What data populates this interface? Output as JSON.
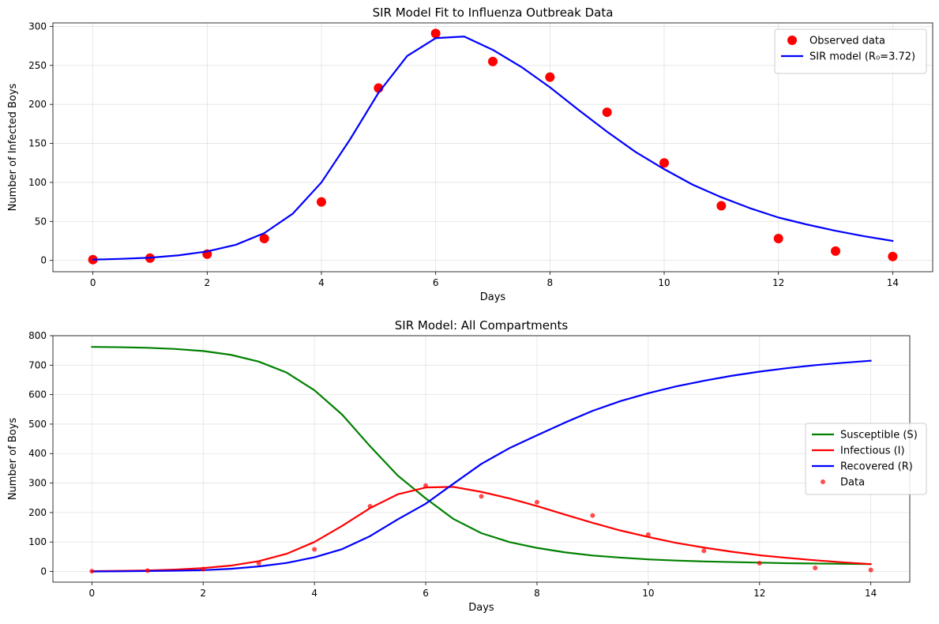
{
  "chart_data": [
    {
      "type": "line",
      "title": "SIR Model Fit to Influenza Outbreak Data",
      "xlabel": "Days",
      "ylabel": "Number of Infected Boys",
      "xlim": [
        -0.7,
        14.7
      ],
      "ylim": [
        -14.5,
        304.5
      ],
      "xticks": [
        0,
        2,
        4,
        6,
        8,
        10,
        12,
        14
      ],
      "yticks": [
        0,
        50,
        100,
        150,
        200,
        250,
        300
      ],
      "grid": true,
      "legend_position": "upper right",
      "series": [
        {
          "name": "Observed data",
          "kind": "scatter",
          "color": "#ff0000",
          "x": [
            0,
            1,
            2,
            3,
            4,
            5,
            6,
            7,
            8,
            9,
            10,
            11,
            12,
            13,
            14
          ],
          "y": [
            1,
            3,
            8,
            28,
            75,
            221,
            291,
            255,
            235,
            190,
            125,
            70,
            28,
            12,
            5
          ]
        },
        {
          "name": "SIR model (R₀=3.72)",
          "kind": "line",
          "color": "#0000ff",
          "x": [
            0,
            0.5,
            1,
            1.5,
            2,
            2.5,
            3,
            3.5,
            4,
            4.5,
            5,
            5.5,
            6,
            6.5,
            7,
            7.5,
            8,
            8.5,
            9,
            9.5,
            10,
            10.5,
            11,
            11.5,
            12,
            12.5,
            13,
            13.5,
            14
          ],
          "y": [
            1,
            2,
            3.5,
            6.5,
            11.5,
            20,
            35,
            60,
            100,
            155,
            215,
            262,
            285,
            287,
            270,
            248,
            222,
            193,
            165,
            139,
            117,
            97,
            81,
            67,
            55,
            46,
            38,
            31,
            25
          ]
        }
      ]
    },
    {
      "type": "line",
      "title": "SIR Model: All Compartments",
      "xlabel": "Days",
      "ylabel": "Number of Boys",
      "xlim": [
        -0.7,
        14.7
      ],
      "ylim": [
        -36.2,
        800
      ],
      "xticks": [
        0,
        2,
        4,
        6,
        8,
        10,
        12,
        14
      ],
      "yticks": [
        0,
        100,
        200,
        300,
        400,
        500,
        600,
        700,
        800
      ],
      "grid": true,
      "legend_position": "center right",
      "series": [
        {
          "name": "Susceptible (S)",
          "kind": "line",
          "color": "#008000",
          "x": [
            0,
            0.5,
            1,
            1.5,
            2,
            2.5,
            3,
            3.5,
            4,
            4.5,
            5,
            5.5,
            6,
            6.5,
            7,
            7.5,
            8,
            8.5,
            9,
            9.5,
            10,
            10.5,
            11,
            11.5,
            12,
            12.5,
            13,
            13.5,
            14
          ],
          "y": [
            762,
            761,
            759,
            755,
            748,
            735,
            712,
            675,
            615,
            532,
            425,
            325,
            248,
            178,
            130,
            100,
            80,
            65,
            54,
            47,
            41,
            37,
            34,
            32,
            30,
            28,
            27,
            26,
            25
          ]
        },
        {
          "name": "Infectious (I)",
          "kind": "line",
          "color": "#ff0000",
          "x": [
            0,
            0.5,
            1,
            1.5,
            2,
            2.5,
            3,
            3.5,
            4,
            4.5,
            5,
            5.5,
            6,
            6.5,
            7,
            7.5,
            8,
            8.5,
            9,
            9.5,
            10,
            10.5,
            11,
            11.5,
            12,
            12.5,
            13,
            13.5,
            14
          ],
          "y": [
            1,
            2,
            3.5,
            6.5,
            11.5,
            20,
            35,
            60,
            100,
            155,
            215,
            262,
            285,
            287,
            270,
            248,
            222,
            193,
            165,
            139,
            117,
            97,
            81,
            67,
            55,
            46,
            38,
            31,
            25
          ]
        },
        {
          "name": "Recovered (R)",
          "kind": "line",
          "color": "#0000ff",
          "x": [
            0,
            0.5,
            1,
            1.5,
            2,
            2.5,
            3,
            3.5,
            4,
            4.5,
            5,
            5.5,
            6,
            6.5,
            7,
            7.5,
            8,
            8.5,
            9,
            9.5,
            10,
            10.5,
            11,
            11.5,
            12,
            12.5,
            13,
            13.5,
            14
          ],
          "y": [
            0,
            0.5,
            1.5,
            2.5,
            4.5,
            9,
            17,
            29,
            48,
            76,
            120,
            177,
            230,
            298,
            365,
            418,
            462,
            505,
            545,
            578,
            605,
            628,
            647,
            664,
            678,
            690,
            700,
            708,
            715
          ]
        },
        {
          "name": "Data",
          "kind": "scatter",
          "color": "#ff0000",
          "x": [
            0,
            1,
            2,
            3,
            4,
            5,
            6,
            7,
            8,
            9,
            10,
            11,
            12,
            13,
            14
          ],
          "y": [
            1,
            3,
            8,
            28,
            75,
            221,
            291,
            255,
            235,
            190,
            125,
            70,
            28,
            12,
            5
          ]
        }
      ]
    }
  ]
}
